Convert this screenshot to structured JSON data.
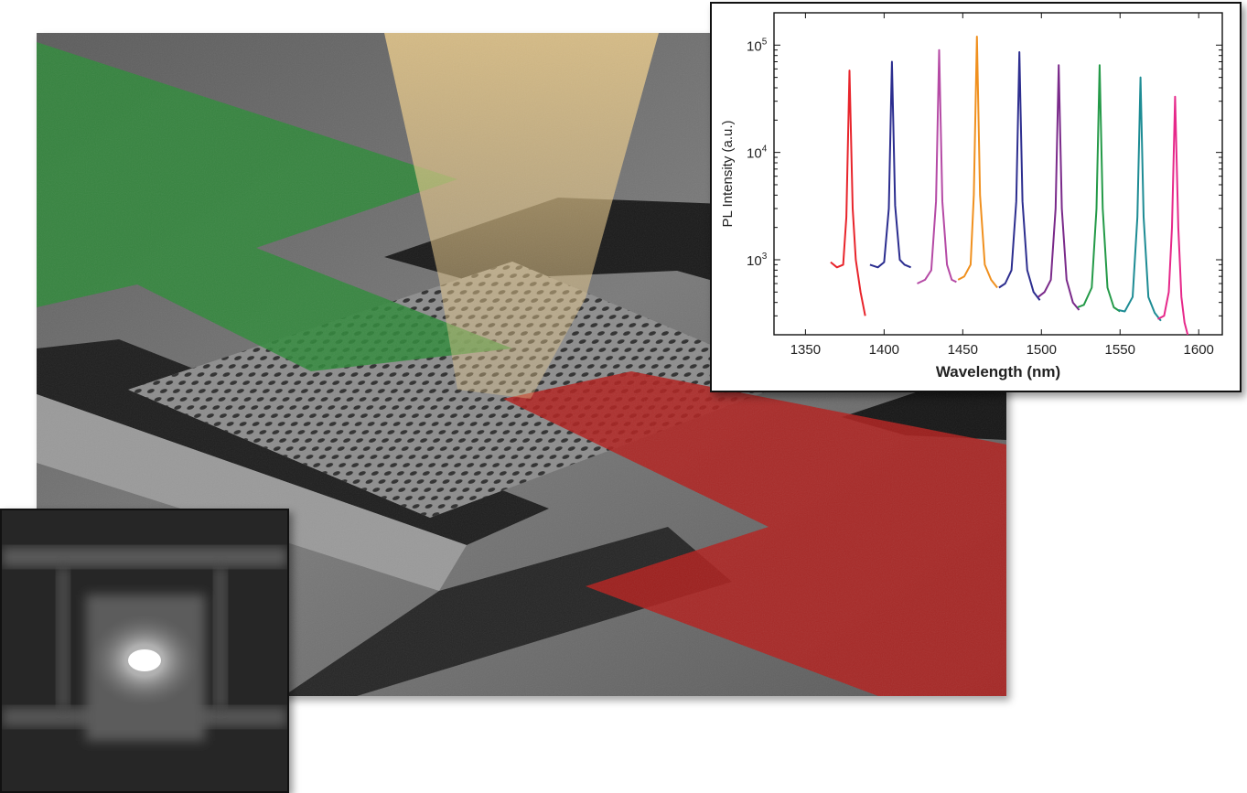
{
  "figure": {
    "sem_image": {
      "overlay_colors": {
        "left_waveguide": "#2f8a3a",
        "right_waveguide": "#b3201d",
        "pump_beam": "#e8c98a",
        "substrate": "#6b6b6b"
      }
    },
    "mode_inset": {
      "spot_color": "#ffffff"
    }
  },
  "chart_data": {
    "type": "line",
    "xlabel": "Wavelength (nm)",
    "ylabel": "PL Intensity (a.u.)",
    "xlim": [
      1330,
      1615
    ],
    "ylim": [
      200,
      200000
    ],
    "yscale": "log",
    "x_ticks": [
      1350,
      1400,
      1450,
      1500,
      1550,
      1600
    ],
    "x_tick_labels": [
      "1350",
      "1400",
      "1450",
      "1500",
      "1550",
      "1600"
    ],
    "y_ticks": [
      1000,
      10000,
      100000
    ],
    "y_tick_labels": [
      {
        "base": "10",
        "exp": "3"
      },
      {
        "base": "10",
        "exp": "4"
      },
      {
        "base": "10",
        "exp": "5"
      }
    ],
    "grid": false,
    "series": [
      {
        "color": "#e8242b",
        "x": [
          1366,
          1370,
          1374,
          1376,
          1378,
          1380,
          1382,
          1385,
          1388
        ],
        "y": [
          950,
          850,
          900,
          2500,
          58000,
          3000,
          1000,
          500,
          300
        ]
      },
      {
        "color": "#2b2d8f",
        "x": [
          1391,
          1396,
          1400,
          1403,
          1405,
          1407,
          1410,
          1413,
          1417
        ],
        "y": [
          900,
          850,
          950,
          3000,
          70000,
          3200,
          1000,
          900,
          850
        ]
      },
      {
        "color": "#b54aa5",
        "x": [
          1421,
          1426,
          1430,
          1433,
          1435,
          1437,
          1440,
          1443,
          1446
        ],
        "y": [
          600,
          650,
          800,
          3500,
          90000,
          3500,
          900,
          650,
          620
        ]
      },
      {
        "color": "#f0901e",
        "x": [
          1447,
          1451,
          1455,
          1457,
          1459,
          1461,
          1464,
          1468,
          1472
        ],
        "y": [
          650,
          700,
          900,
          4000,
          120000,
          4000,
          900,
          650,
          550
        ]
      },
      {
        "color": "#2d2e8f",
        "x": [
          1473,
          1477,
          1481,
          1484,
          1486,
          1488,
          1491,
          1495,
          1499
        ],
        "y": [
          550,
          600,
          800,
          3500,
          86000,
          3500,
          800,
          500,
          420
        ]
      },
      {
        "color": "#7a2a8a",
        "x": [
          1498,
          1502,
          1506,
          1509,
          1511,
          1513,
          1516,
          1520,
          1524
        ],
        "y": [
          450,
          500,
          650,
          3000,
          65000,
          3000,
          650,
          400,
          340
        ]
      },
      {
        "color": "#249a48",
        "x": [
          1523,
          1527,
          1532,
          1535,
          1537,
          1539,
          1542,
          1546,
          1550
        ],
        "y": [
          360,
          380,
          550,
          3000,
          65000,
          3000,
          550,
          360,
          330
        ]
      },
      {
        "color": "#1d8c94",
        "x": [
          1549,
          1553,
          1558,
          1561,
          1563,
          1565,
          1568,
          1572,
          1576
        ],
        "y": [
          340,
          330,
          450,
          2500,
          50000,
          2500,
          450,
          320,
          270
        ]
      },
      {
        "color": "#e6288a",
        "x": [
          1574,
          1578,
          1581,
          1583,
          1585,
          1587,
          1589,
          1591,
          1593
        ],
        "y": [
          280,
          300,
          500,
          2000,
          33000,
          2000,
          450,
          260,
          200
        ]
      }
    ]
  }
}
